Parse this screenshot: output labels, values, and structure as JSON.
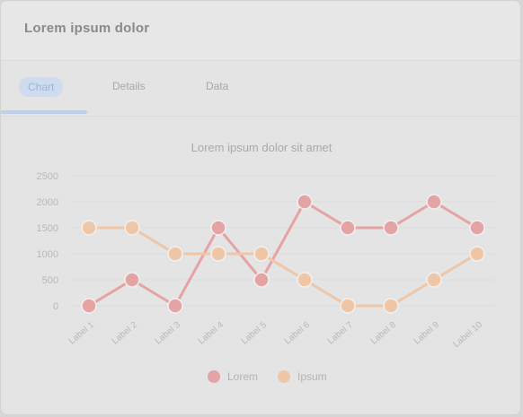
{
  "window": {
    "title": "Lorem ipsum dolor"
  },
  "tabs": [
    {
      "label": "Chart"
    },
    {
      "label": "Details"
    },
    {
      "label": "Data"
    }
  ],
  "colors": {
    "series1": "#e6a3a3",
    "series2": "#efc7a7",
    "axis_text": "#b8b8b8",
    "title_text": "#a9a9a9"
  },
  "chart_data": {
    "type": "line",
    "title": "Lorem ipsum dolor sit amet",
    "xlabel": "",
    "ylabel": "",
    "categories": [
      "Label 1",
      "Label 2",
      "Label 3",
      "Label 4",
      "Label 5",
      "Label 6",
      "Label 7",
      "Label 8",
      "Label 9",
      "Label 10"
    ],
    "ylim": [
      0,
      2500
    ],
    "yticks": [
      0,
      500,
      1000,
      1500,
      2000,
      2500
    ],
    "series": [
      {
        "name": "Lorem",
        "color": "#e6a3a3",
        "values": [
          0,
          500,
          0,
          1500,
          500,
          2000,
          1500,
          1500,
          2000,
          1500
        ]
      },
      {
        "name": "Ipsum",
        "color": "#efc7a7",
        "values": [
          1500,
          1500,
          1000,
          1000,
          1000,
          500,
          0,
          0,
          500,
          1000
        ]
      }
    ],
    "legend": "bottom",
    "grid": true
  }
}
